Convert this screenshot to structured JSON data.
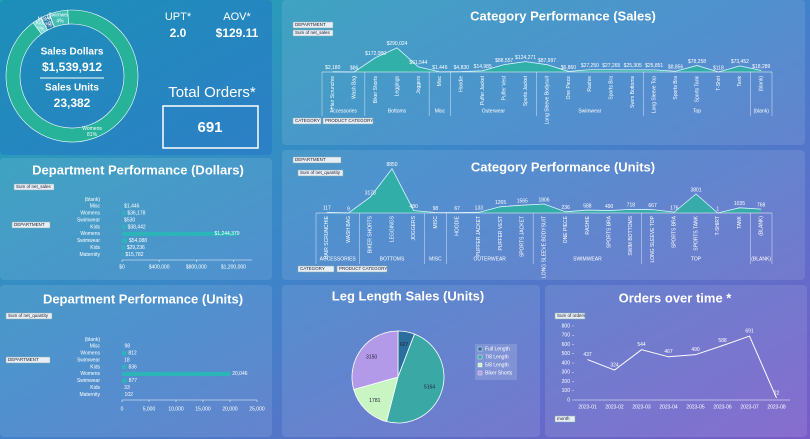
{
  "kpis": {
    "sales_dollars_label": "Sales Dollars",
    "sales_dollars": "$1,539,912",
    "sales_units_label": "Sales Units",
    "sales_units": "23,382",
    "upt_label": "UPT*",
    "upt": "2.0",
    "aov_label": "AOV*",
    "aov": "$129.11",
    "total_orders_label": "Total Orders*",
    "total_orders": "691"
  },
  "controls": {
    "sales_field": "Sum of net_sales",
    "quantity_field": "Sum of net_quantity",
    "orders_field": "Sum of orders",
    "department": "DEPARTMENT",
    "category": "CATEGORY",
    "product_category": "PRODUCT CATEGORY",
    "month": "month"
  },
  "chart_data": [
    {
      "type": "donut",
      "categories": [
        "Kids",
        "Maternity",
        "Misc",
        "Swimwear",
        "Womens"
      ],
      "values": [
        2,
        2,
        0,
        4,
        81
      ],
      "value_labels": [
        "2%",
        "2%",
        "0%",
        "4%",
        "81%"
      ],
      "colors": [
        "#6fd9d0",
        "#2f7fa8",
        "#a9d3ef",
        "#44bdb4",
        "#27b39a"
      ]
    },
    {
      "type": "area",
      "title": "Category Performance (Sales)",
      "color": "#2bb5a0",
      "groups": [
        {
          "name": "Accessories",
          "categories": [
            "Hair Scrunchie",
            "Wash Bag"
          ]
        },
        {
          "name": "Bottoms",
          "categories": [
            "Biker Shorts",
            "Leggings",
            "Joggers"
          ]
        },
        {
          "name": "Misc",
          "categories": [
            "Misc"
          ]
        },
        {
          "name": "Outerwear",
          "categories": [
            "Hoodie",
            "Puffer Jacket",
            "Puffer Vest",
            "Sports Jacket"
          ]
        },
        {
          "name": "Swimwear",
          "categories": [
            "Long Sleeve Bodysuit",
            "One Piece",
            "Rashie",
            "Sports Bra",
            "Swim Bottoms"
          ]
        },
        {
          "name": "Top",
          "categories": [
            "Long Sleeve Top",
            "Sports Bra",
            "Sports Tank",
            "T-Shirt",
            "Tank"
          ]
        },
        {
          "name": "(blank)",
          "categories": [
            "(blank)"
          ]
        }
      ],
      "values": [
        2180,
        86,
        172080,
        290024,
        61544,
        1446,
        4830,
        14985,
        88557,
        124271,
        87997,
        6860,
        27250,
        27265,
        25305,
        25851,
        8856,
        78258,
        118,
        73452,
        18289
      ],
      "value_labels": [
        "$2,180",
        "$86",
        "$172,080",
        "$290,024",
        "$61,544",
        "$1,446",
        "$4,830",
        "$14,985",
        "$88,557",
        "$124,271",
        "$87,997",
        "$6,860",
        "$27,250",
        "$27,265",
        "$25,305",
        "$25,851",
        "$8,856",
        "$78,258",
        "$118",
        "$73,452",
        "$18,289"
      ],
      "ylim": [
        0,
        300000
      ]
    },
    {
      "type": "hbar",
      "title": "Department Performance (Dollars)",
      "color": "#2cb5b8",
      "categories": [
        "(blank)",
        "Misc",
        "Womens",
        "Swimwear",
        "Kids",
        "Womens",
        "Swimwear",
        "Kids",
        "Maternity"
      ],
      "values": [
        null,
        1446,
        36178,
        530,
        38442,
        1244379,
        54088,
        29236,
        15782
      ],
      "value_labels": [
        null,
        "$1,446",
        "$36,178",
        "$530",
        "$38,442",
        "$1,244,379",
        "$54,088",
        "$29,236",
        "$15,782"
      ],
      "xlim": [
        0,
        1400000
      ],
      "xticks": [
        {
          "value": 0,
          "label": "$0"
        },
        {
          "value": 400000,
          "label": "$400,000"
        },
        {
          "value": 800000,
          "label": "$800,000"
        },
        {
          "value": 1200000,
          "label": "$1,200,000"
        }
      ]
    },
    {
      "type": "area",
      "title": "Category Performance (Units)",
      "color": "#2bb5a0",
      "groups": [
        {
          "name": "ACCESSORIES",
          "categories": [
            "HAIR SCRUNCHIE",
            "WASH BAG"
          ]
        },
        {
          "name": "BOTTOMS",
          "categories": [
            "BIKER SHORTS",
            "LEGGINGS",
            "JOGGERS"
          ]
        },
        {
          "name": "MISC",
          "categories": [
            "MISC"
          ]
        },
        {
          "name": "OUTERWEAR",
          "categories": [
            "HOODIE",
            "PUFFER JACKET",
            "PUFFER VEST",
            "SPORTS JACKET"
          ]
        },
        {
          "name": "SWIMWEAR",
          "categories": [
            "LONG SLEEVE BODYSUIT",
            "ONE PIECE",
            "RASHIE",
            "SPORTS BRA",
            "SWIM BOTTOMS"
          ]
        },
        {
          "name": "TOP",
          "categories": [
            "LONG SLEEVE TOP",
            "SPORTS BRA",
            "SPORTS TANK",
            "T-SHIRT",
            "TANK"
          ]
        },
        {
          "name": "(BLANK)",
          "categories": [
            "(BLANK)"
          ]
        }
      ],
      "values": [
        117,
        9,
        3173,
        8850,
        480,
        98,
        67,
        133,
        1265,
        1565,
        1806,
        236,
        588,
        490,
        718,
        667,
        176,
        3801,
        1,
        1035,
        768
      ],
      "ylim": [
        0,
        9000
      ]
    },
    {
      "type": "hbar",
      "title": "Department Performance (Units)",
      "color": "#2cb5b8",
      "categories": [
        "(blank)",
        "Misc",
        "Womens",
        "Swimwear",
        "Kids",
        "Womens",
        "Swimwear",
        "Kids",
        "Maternity"
      ],
      "values": [
        null,
        98,
        812,
        18,
        836,
        20046,
        877,
        33,
        102
      ],
      "value_labels": [
        null,
        "98",
        "812",
        "18",
        "836",
        "20,046",
        "877",
        "33",
        "102"
      ],
      "xlim": [
        0,
        25000
      ],
      "xticks": [
        0,
        {
          "value": 5000,
          "label": "5,000"
        },
        {
          "value": 10000,
          "label": "10,000"
        },
        {
          "value": 15000,
          "label": "15,000"
        },
        {
          "value": 20000,
          "label": "20,000"
        },
        {
          "value": 25000,
          "label": "25,000"
        }
      ]
    },
    {
      "type": "pie",
      "title": "Leg Length Sales (Units)",
      "legend": "right",
      "categories": [
        "Full Length",
        "7/8 Length",
        "5/8 Length",
        "Biker Shorts"
      ],
      "values": [
        627,
        5164,
        1781,
        3150
      ],
      "colors": [
        "#2a6e9e",
        "#3aa9a6",
        "#c8f5c2",
        "#b39ae8"
      ]
    },
    {
      "type": "line",
      "title": "Orders over time *",
      "color": "#ffffff",
      "categories": [
        "2023-01",
        "2023-02",
        "2023-03",
        "2023-04",
        "2023-05",
        "2023-06",
        "2023-07",
        "2023-08"
      ],
      "values": [
        437,
        324,
        544,
        467,
        490,
        588,
        691,
        22
      ],
      "ylim": [
        0,
        800
      ],
      "yticks": [
        0,
        100,
        200,
        300,
        400,
        500,
        600,
        700,
        800
      ]
    }
  ]
}
